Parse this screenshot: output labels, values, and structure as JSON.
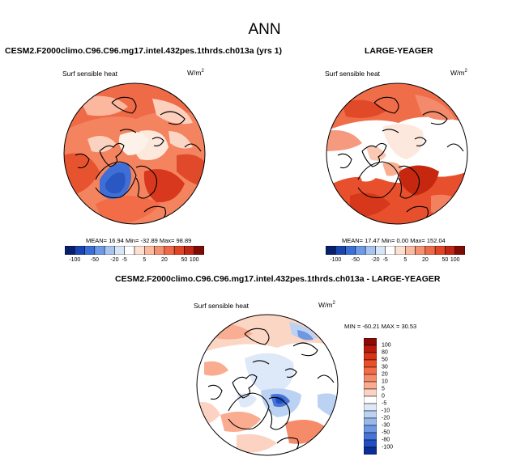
{
  "page": {
    "main_title": "ANN"
  },
  "panels": {
    "left": {
      "title": "CESM2.F2000climo.C96.C96.mg17.intel.432pes.1thrds.ch013a (yrs 1)",
      "variable": "Surf sensible heat",
      "units": "W/m",
      "units_exp": "2",
      "stats": "MEAN=  16.94   Min= -32.89   Max=  98.89"
    },
    "right": {
      "title": "LARGE-YEAGER",
      "variable": "Surf sensible heat",
      "units": "W/m",
      "units_exp": "2",
      "stats": "MEAN=  17.47   Min=   0.00   Max= 152.04"
    },
    "diff": {
      "title": "CESM2.F2000climo.C96.C96.mg17.intel.432pes.1thrds.ch013a - LARGE-YEAGER",
      "variable": "Surf sensible heat",
      "units": "W/m",
      "units_exp": "2",
      "stats": "MIN = -60.21  MAX =  30.53"
    }
  },
  "colorbar_horizontal": {
    "labels": [
      "-100",
      "-50",
      "-20",
      "-5",
      "5",
      "20",
      "50",
      "100"
    ],
    "colors": [
      "#08206b",
      "#1a45b0",
      "#3a6fd8",
      "#6d9ae6",
      "#a7c3ef",
      "#d8e5f7",
      "#ffffff",
      "#fde0d2",
      "#fbb9a0",
      "#f59073",
      "#ef6848",
      "#e14527",
      "#c02616",
      "#7f0b05"
    ]
  },
  "colorbar_vertical": {
    "labels": [
      "100",
      "80",
      "50",
      "30",
      "20",
      "10",
      "5",
      "0",
      "-5",
      "-10",
      "-20",
      "-30",
      "-50",
      "-80",
      "-100"
    ],
    "colors": [
      "#8b0a05",
      "#b81a0e",
      "#d83218",
      "#ea4f2a",
      "#f26c47",
      "#f68b69",
      "#f9ac90",
      "#fcd3c2",
      "#ffffff",
      "#dde8f8",
      "#bcd2f3",
      "#98b8ec",
      "#6f97e2",
      "#4674d7",
      "#1f4fc4",
      "#0a2d96"
    ]
  }
}
